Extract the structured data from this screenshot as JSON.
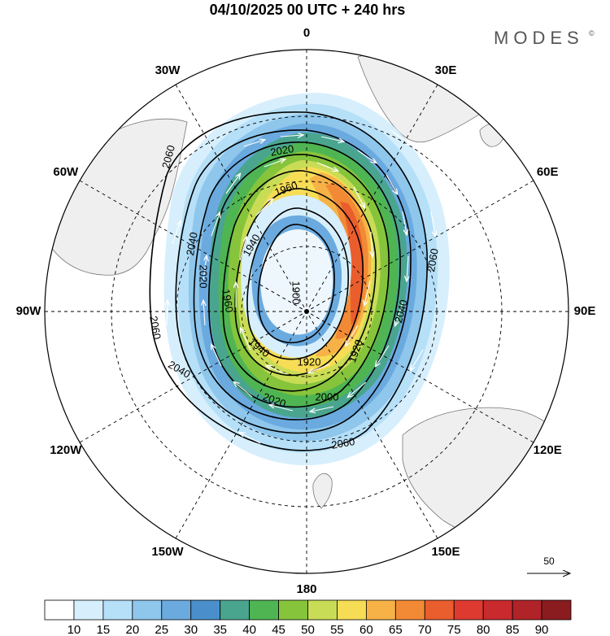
{
  "title": "04/10/2025  00 UTC  + 240 hrs",
  "brand": {
    "name": "MODES",
    "mark": "©"
  },
  "longitude_labels": [
    "0",
    "30E",
    "60E",
    "90E",
    "120E",
    "150E",
    "180",
    "150W",
    "120W",
    "90W",
    "60W",
    "30W"
  ],
  "chart_data": {
    "type": "heatmap",
    "projection": "south-polar-stereographic",
    "title": "04/10/2025  00 UTC  + 240 hrs",
    "field": "wind speed (shaded) with wind vectors and geopotential height contours",
    "contour_levels": [
      "1900",
      "1920",
      "1940",
      "1960",
      "2000",
      "2020",
      "2040",
      "2060"
    ],
    "contour_labels": [
      {
        "text": "1900"
      },
      {
        "text": "1920"
      },
      {
        "text": "1920"
      },
      {
        "text": "1940"
      },
      {
        "text": "1940"
      },
      {
        "text": "1960"
      },
      {
        "text": "1960"
      },
      {
        "text": "2000"
      },
      {
        "text": "2020"
      },
      {
        "text": "2020"
      },
      {
        "text": "2020"
      },
      {
        "text": "2040"
      },
      {
        "text": "2040"
      },
      {
        "text": "2040"
      },
      {
        "text": "2060"
      },
      {
        "text": "2060"
      },
      {
        "text": "2060"
      },
      {
        "text": "2060"
      }
    ],
    "colorbar": {
      "ticks": [
        "10",
        "15",
        "20",
        "25",
        "30",
        "35",
        "40",
        "45",
        "50",
        "55",
        "60",
        "65",
        "70",
        "75",
        "80",
        "85",
        "90"
      ],
      "colors": [
        "#ffffff",
        "#d7effc",
        "#b6e0f8",
        "#8ec6ec",
        "#6aaadf",
        "#4a8fcb",
        "#4aa58f",
        "#4fb552",
        "#86c43c",
        "#c9dc55",
        "#f6dd55",
        "#f6b247",
        "#f28a35",
        "#ea5d2d",
        "#de3a2f",
        "#c92a2e",
        "#b02329",
        "#8a1c1f"
      ]
    },
    "reference_vector": "50"
  }
}
